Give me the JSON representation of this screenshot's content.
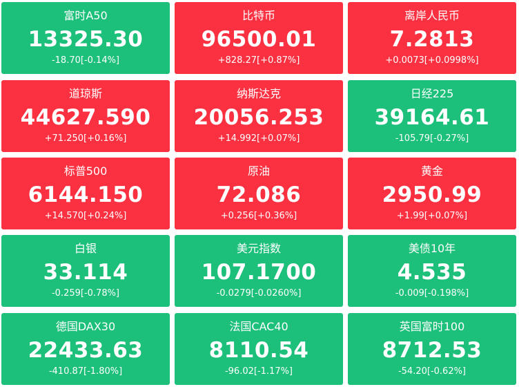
{
  "colors": {
    "up": "#fb3040",
    "down": "#1cc07a",
    "text": "#ffffff"
  },
  "tiles": [
    {
      "name": "富时A50",
      "price": "13325.30",
      "change": "-18.70[-0.14%]",
      "trend": "down"
    },
    {
      "name": "比特币",
      "price": "96500.01",
      "change": "+828.27[+0.87%]",
      "trend": "up"
    },
    {
      "name": "离岸人民币",
      "price": "7.2813",
      "change": "+0.0073[+0.0998%]",
      "trend": "up"
    },
    {
      "name": "道琼斯",
      "price": "44627.590",
      "change": "+71.250[+0.16%]",
      "trend": "up"
    },
    {
      "name": "纳斯达克",
      "price": "20056.253",
      "change": "+14.992[+0.07%]",
      "trend": "up"
    },
    {
      "name": "日经225",
      "price": "39164.61",
      "change": "-105.79[-0.27%]",
      "trend": "down"
    },
    {
      "name": "标普500",
      "price": "6144.150",
      "change": "+14.570[+0.24%]",
      "trend": "up"
    },
    {
      "name": "原油",
      "price": "72.086",
      "change": "+0.256[+0.36%]",
      "trend": "up"
    },
    {
      "name": "黄金",
      "price": "2950.99",
      "change": "+1.99[+0.07%]",
      "trend": "up"
    },
    {
      "name": "白银",
      "price": "33.114",
      "change": "-0.259[-0.78%]",
      "trend": "down"
    },
    {
      "name": "美元指数",
      "price": "107.1700",
      "change": "-0.0279[-0.0260%]",
      "trend": "down"
    },
    {
      "name": "美债10年",
      "price": "4.535",
      "change": "-0.009[-0.198%]",
      "trend": "down"
    },
    {
      "name": "德国DAX30",
      "price": "22433.63",
      "change": "-410.87[-1.80%]",
      "trend": "down"
    },
    {
      "name": "法国CAC40",
      "price": "8110.54",
      "change": "-96.02[-1.17%]",
      "trend": "down"
    },
    {
      "name": "英国富时100",
      "price": "8712.53",
      "change": "-54.20[-0.62%]",
      "trend": "down"
    }
  ]
}
